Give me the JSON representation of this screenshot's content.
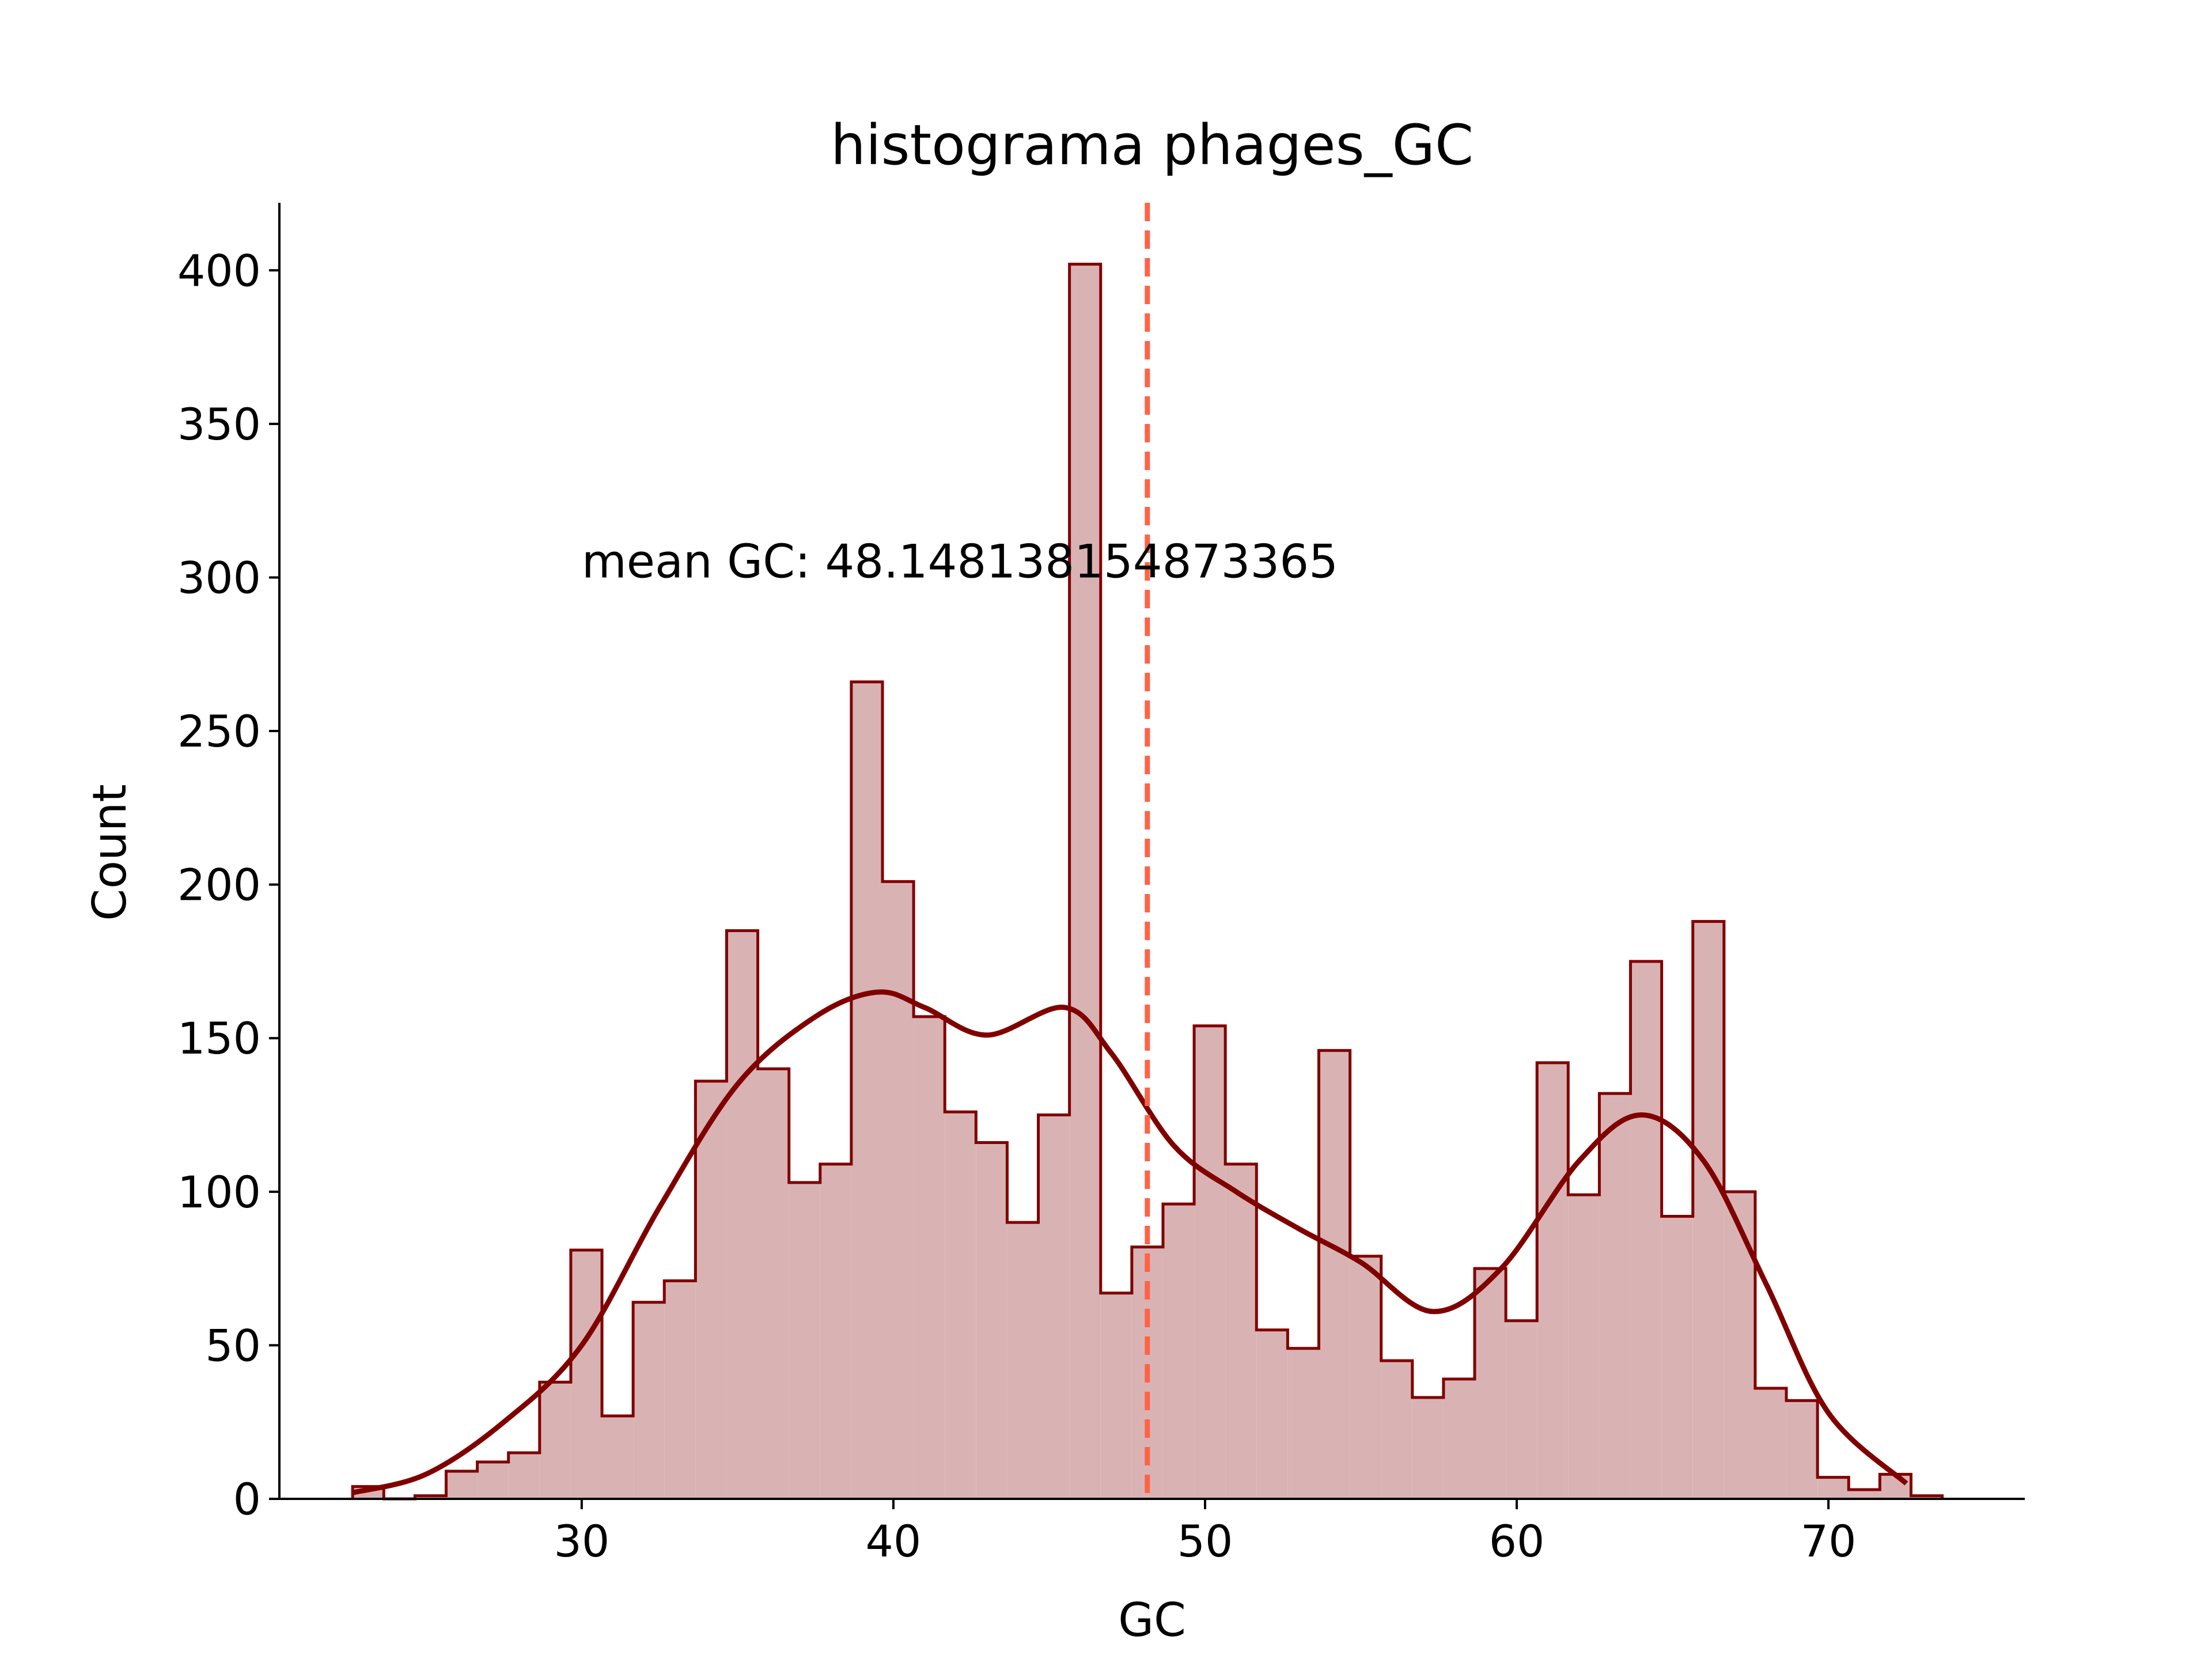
{
  "chart_data": {
    "type": "histogram",
    "title": "histograma phages_GC",
    "xlabel": "GC",
    "ylabel": "Count",
    "xlim": [
      20.3,
      76.3
    ],
    "ylim": [
      0,
      422
    ],
    "xticks": [
      30,
      40,
      50,
      60,
      70
    ],
    "yticks": [
      0,
      50,
      100,
      150,
      200,
      250,
      300,
      350,
      400
    ],
    "bin_start": 22.65,
    "bin_width": 1.0,
    "counts": [
      4,
      0,
      1,
      9,
      12,
      15,
      38,
      81,
      27,
      64,
      71,
      136,
      185,
      140,
      103,
      109,
      266,
      201,
      157,
      126,
      116,
      90,
      125,
      402,
      67,
      82,
      96,
      154,
      109,
      55,
      49,
      146,
      79,
      45,
      33,
      39,
      75,
      58,
      142,
      99,
      132,
      175,
      92,
      188,
      100,
      36,
      32,
      7,
      3,
      8,
      1
    ],
    "kde": {
      "x": [
        22.65,
        25,
        27.5,
        30,
        32.5,
        35,
        37.5,
        39.5,
        41,
        43,
        45.5,
        47,
        49,
        51,
        53,
        55,
        57.3,
        59.5,
        62,
        64,
        66,
        68,
        70,
        72.5
      ],
      "y": [
        2,
        8,
        25,
        50,
        95,
        135,
        157,
        165,
        160,
        151,
        160,
        145,
        115,
        100,
        88,
        77,
        61,
        75,
        110,
        125,
        110,
        70,
        28,
        5
      ]
    },
    "mean_line": {
      "x": 48.148138154873365,
      "color": "#ff6347",
      "style": "dashed"
    },
    "annotation": {
      "text": "mean GC: 48.148138154873365",
      "x": 30,
      "y": 300
    },
    "colors": {
      "bar_fill": "#d9b3b3",
      "bar_edge": "#800000",
      "kde": "#800000",
      "mean_line": "#ff6347"
    },
    "grid": false,
    "legend": "none"
  }
}
